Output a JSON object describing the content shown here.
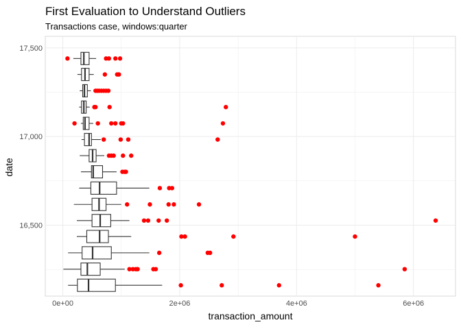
{
  "chart_data": {
    "type": "boxplot",
    "orientation": "horizontal",
    "title": "First Evaluation to Understand Outliers",
    "subtitle": "Transactions case, windows:quarter",
    "xlabel": "transaction_amount",
    "ylabel": "date",
    "xlim": [
      -300000,
      6720000
    ],
    "ylim": [
      16100,
      17565
    ],
    "x_ticks": [
      {
        "value": 0,
        "label": "0e+00"
      },
      {
        "value": 2000000,
        "label": "2e+06"
      },
      {
        "value": 4000000,
        "label": "4e+06"
      },
      {
        "value": 6000000,
        "label": "6e+06"
      }
    ],
    "y_ticks": [
      {
        "value": 16500,
        "label": "16,500"
      },
      {
        "value": 17000,
        "label": "17,000"
      },
      {
        "value": 17500,
        "label": "17,500"
      }
    ],
    "grid": true,
    "box_fill": "#ffffff",
    "box_line_color": "#333333",
    "outlier_color": "#ff0000",
    "grid_color": "#ebebeb",
    "panel_border_color": "#d9d9d9",
    "boxes": [
      {
        "y": 16161,
        "whisker_low": 90000,
        "q1": 250000,
        "median": 440000,
        "q3": 900000,
        "whisker_high": 1700000,
        "outliers": [
          2020000,
          2720000,
          3700000,
          5400000
        ]
      },
      {
        "y": 16252,
        "whisker_low": 10000,
        "q1": 310000,
        "median": 420000,
        "q3": 640000,
        "whisker_high": 1060000,
        "outliers": [
          1140000,
          1200000,
          1250000,
          1280000,
          1550000,
          1590000,
          5850000
        ]
      },
      {
        "y": 16344,
        "whisker_low": 90000,
        "q1": 330000,
        "median": 510000,
        "q3": 830000,
        "whisker_high": 1480000,
        "outliers": [
          1650000,
          2480000,
          2520000
        ]
      },
      {
        "y": 16436,
        "whisker_low": 240000,
        "q1": 410000,
        "median": 630000,
        "q3": 780000,
        "whisker_high": 1170000,
        "outliers": [
          2030000,
          2090000,
          2920000,
          5000000
        ]
      },
      {
        "y": 16526,
        "whisker_low": 240000,
        "q1": 500000,
        "median": 640000,
        "q3": 820000,
        "whisker_high": 1140000,
        "outliers": [
          1390000,
          1460000,
          1640000,
          1780000,
          6380000
        ]
      },
      {
        "y": 16617,
        "whisker_low": 190000,
        "q1": 500000,
        "median": 620000,
        "q3": 740000,
        "whisker_high": 1000000,
        "outliers": [
          1100000,
          1490000,
          1810000,
          1900000,
          2330000
        ]
      },
      {
        "y": 16709,
        "whisker_low": 280000,
        "q1": 480000,
        "median": 630000,
        "q3": 920000,
        "whisker_high": 1480000,
        "outliers": [
          1660000,
          1820000,
          1870000
        ]
      },
      {
        "y": 16801,
        "whisker_low": 310000,
        "q1": 490000,
        "median": 520000,
        "q3": 680000,
        "whisker_high": 920000,
        "outliers": [
          1020000,
          1060000,
          1080000
        ]
      },
      {
        "y": 16892,
        "whisker_low": 290000,
        "q1": 450000,
        "median": 510000,
        "q3": 570000,
        "whisker_high": 710000,
        "outliers": [
          790000,
          830000,
          870000,
          1030000,
          1170000
        ]
      },
      {
        "y": 16983,
        "whisker_low": 320000,
        "q1": 370000,
        "median": 450000,
        "q3": 490000,
        "whisker_high": 650000,
        "outliers": [
          700000,
          990000,
          1120000,
          2650000
        ]
      },
      {
        "y": 17074,
        "whisker_low": 310000,
        "q1": 350000,
        "median": 380000,
        "q3": 450000,
        "whisker_high": 520000,
        "outliers": [
          200000,
          600000,
          830000,
          900000,
          1000000,
          1030000,
          2740000
        ]
      },
      {
        "y": 17166,
        "whisker_low": 280000,
        "q1": 320000,
        "median": 360000,
        "q3": 400000,
        "whisker_high": 460000,
        "outliers": [
          540000,
          560000,
          800000,
          2790000
        ]
      },
      {
        "y": 17258,
        "whisker_low": 290000,
        "q1": 340000,
        "median": 370000,
        "q3": 420000,
        "whisker_high": 480000,
        "outliers": [
          560000,
          590000,
          620000,
          660000,
          700000,
          740000,
          780000
        ]
      },
      {
        "y": 17350,
        "whisker_low": 250000,
        "q1": 320000,
        "median": 380000,
        "q3": 450000,
        "whisker_high": 530000,
        "outliers": [
          720000,
          930000,
          960000
        ]
      },
      {
        "y": 17440,
        "whisker_low": 180000,
        "q1": 310000,
        "median": 360000,
        "q3": 450000,
        "whisker_high": 570000,
        "outliers": [
          80000,
          740000,
          790000,
          900000,
          980000
        ]
      }
    ]
  }
}
